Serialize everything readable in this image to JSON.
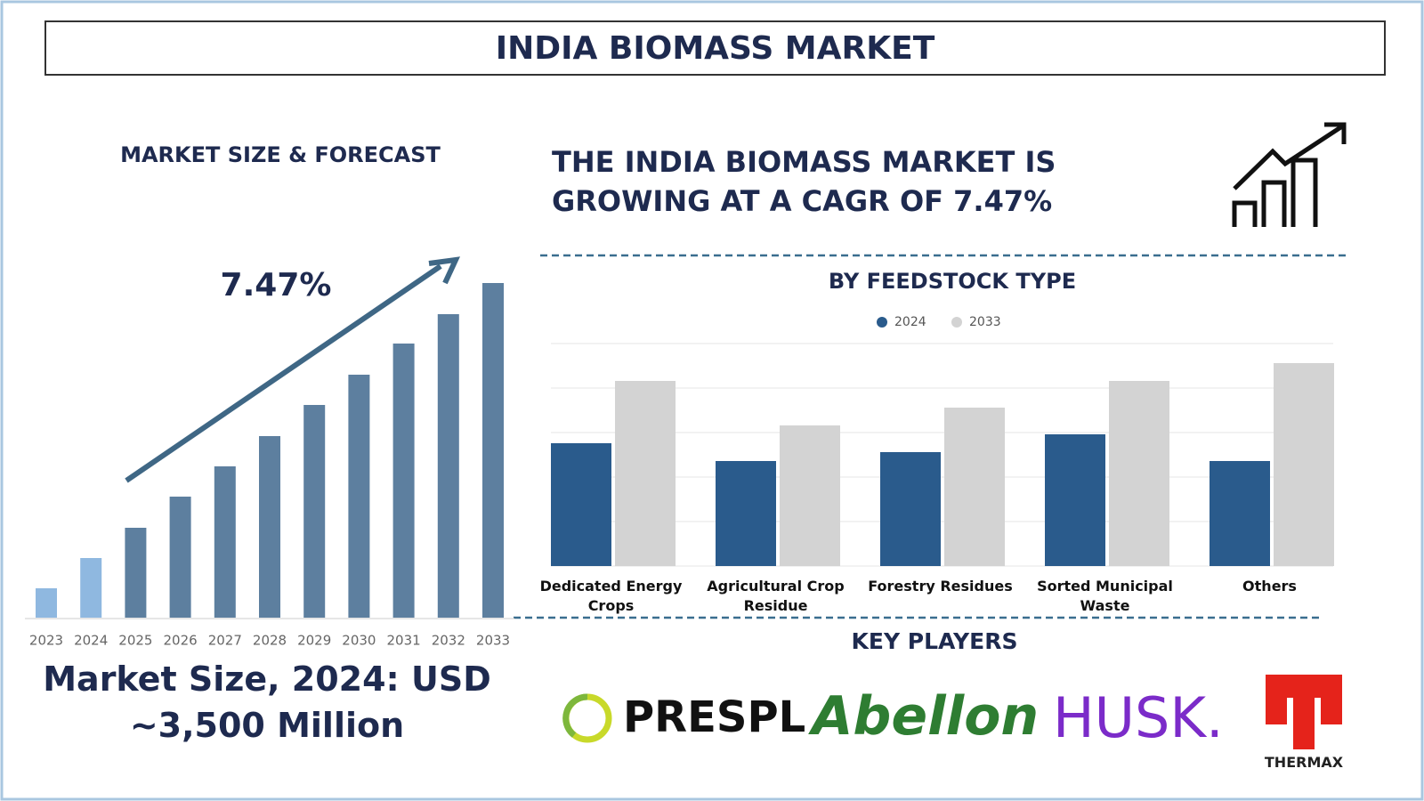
{
  "title": "INDIA BIOMASS MARKET",
  "headline": "THE INDIA BIOMASS MARKET IS GROWING AT A CAGR OF 7.47%",
  "market_size": "Market Size, 2024: USD ~3,500 Million",
  "chart_data": [
    {
      "type": "bar",
      "title": "MARKET SIZE & FORECAST",
      "annotation": "7.47%",
      "categories": [
        "2023",
        "2024",
        "2025",
        "2026",
        "2027",
        "2028",
        "2029",
        "2030",
        "2031",
        "2032",
        "2033"
      ],
      "values": [
        33,
        67,
        101,
        136,
        170,
        204,
        239,
        273,
        308,
        341,
        376
      ],
      "colors": [
        "#8fb8e0",
        "#8fb8e0",
        "#5d7f9f",
        "#5d7f9f",
        "#5d7f9f",
        "#5d7f9f",
        "#5d7f9f",
        "#5d7f9f",
        "#5d7f9f",
        "#5d7f9f",
        "#5d7f9f"
      ]
    },
    {
      "type": "bar",
      "title": "BY FEEDSTOCK TYPE",
      "categories": [
        "Dedicated Energy Crops",
        "Agricultural Crop Residue",
        "Forestry Residues",
        "Sorted Municipal Waste",
        "Others"
      ],
      "series": [
        {
          "name": "2024",
          "color": "#2a5b8c",
          "values": [
            2.76,
            2.36,
            2.56,
            2.96,
            2.36
          ]
        },
        {
          "name": "2033",
          "color": "#d3d3d3",
          "values": [
            4.16,
            3.16,
            3.56,
            4.16,
            4.56
          ]
        }
      ],
      "ylim": [
        0,
        5
      ],
      "yticks": [
        0,
        1,
        2,
        3,
        4,
        5
      ],
      "grid": true
    }
  ],
  "key_players": {
    "title": "KEY PLAYERS",
    "logos": [
      "PRESPL",
      "Abellon",
      "HUSK.",
      "THERMAX"
    ]
  }
}
